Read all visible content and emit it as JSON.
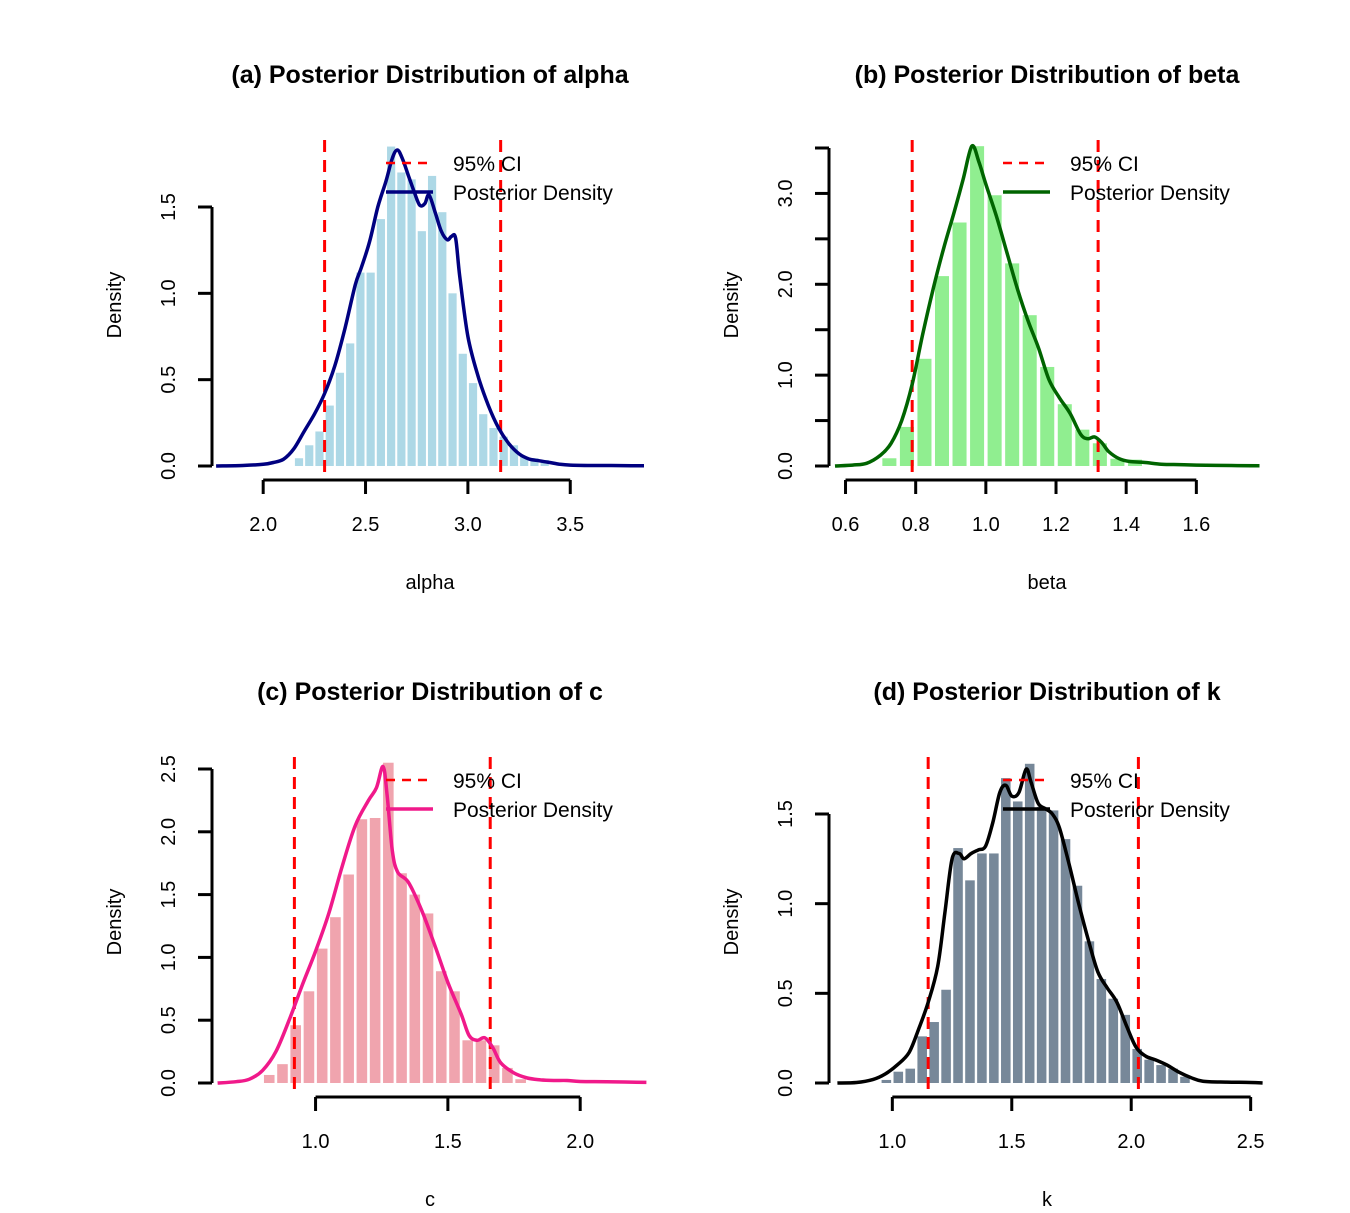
{
  "chart_data": [
    {
      "id": "alpha",
      "type": "bar",
      "title": "(a) Posterior Distribution of alpha",
      "xlabel": "alpha",
      "ylabel": "Density",
      "xlim": [
        1.75,
        3.87
      ],
      "ylim": [
        0,
        1.5
      ],
      "xticks": [
        2.0,
        2.5,
        3.0,
        3.5
      ],
      "xtick_labels": [
        "2.0",
        "2.5",
        "3.0",
        "3.5"
      ],
      "yticks": [
        0.0,
        0.5,
        1.0,
        1.5
      ],
      "ytick_labels": [
        "0.0",
        "0.5",
        "1.0",
        "1.5"
      ],
      "bin_width": 0.05,
      "bin_starts": [
        2.15,
        2.2,
        2.25,
        2.3,
        2.35,
        2.4,
        2.45,
        2.5,
        2.55,
        2.6,
        2.65,
        2.7,
        2.75,
        2.8,
        2.85,
        2.9,
        2.95,
        3.0,
        3.05,
        3.1,
        3.15,
        3.2,
        3.25,
        3.3,
        3.35
      ],
      "values": [
        0.045,
        0.12,
        0.2,
        0.35,
        0.54,
        0.71,
        1.12,
        1.12,
        1.43,
        1.85,
        1.7,
        1.66,
        1.36,
        1.68,
        1.47,
        1.0,
        0.65,
        0.48,
        0.3,
        0.22,
        0.17,
        0.12,
        0.054,
        0.045,
        0.035
      ],
      "density": {
        "x": [
          1.77,
          1.9,
          2.0,
          2.05,
          2.1,
          2.15,
          2.2,
          2.25,
          2.3,
          2.35,
          2.4,
          2.45,
          2.48,
          2.52,
          2.56,
          2.6,
          2.63,
          2.655,
          2.68,
          2.71,
          2.74,
          2.765,
          2.79,
          2.81,
          2.84,
          2.87,
          2.9,
          2.92,
          2.94,
          2.96,
          3.0,
          3.05,
          3.1,
          3.15,
          3.2,
          3.25,
          3.3,
          3.35,
          3.4,
          3.45,
          3.5,
          3.6,
          3.7,
          3.8,
          3.86
        ],
        "y": [
          0.0,
          0.003,
          0.01,
          0.02,
          0.04,
          0.1,
          0.2,
          0.3,
          0.42,
          0.58,
          0.8,
          1.05,
          1.15,
          1.3,
          1.5,
          1.65,
          1.78,
          1.83,
          1.78,
          1.68,
          1.58,
          1.51,
          1.52,
          1.57,
          1.47,
          1.36,
          1.31,
          1.33,
          1.32,
          1.1,
          0.75,
          0.52,
          0.35,
          0.22,
          0.13,
          0.07,
          0.04,
          0.03,
          0.02,
          0.01,
          0.005,
          0.003,
          0.003,
          0.002,
          0.002
        ]
      },
      "ci": [
        2.3,
        3.16
      ],
      "legend": [
        "95% CI",
        "Posterior Density"
      ],
      "legend_position": "top-right",
      "colors": {
        "bars": "#add8e6",
        "density": "#000080",
        "ci": "#ff0000"
      }
    },
    {
      "id": "beta",
      "type": "bar",
      "title": "(b) Posterior Distribution of beta",
      "xlabel": "beta",
      "ylabel": "Density",
      "xlim": [
        0.57,
        1.79
      ],
      "ylim": [
        0,
        3.5
      ],
      "xticks": [
        0.6,
        0.8,
        1.0,
        1.2,
        1.4,
        1.6
      ],
      "xtick_labels": [
        "0.6",
        "0.8",
        "1.0",
        "1.2",
        "1.4",
        "1.6"
      ],
      "yticks": [
        0.0,
        0.5,
        1.0,
        1.5,
        2.0,
        2.5,
        3.0,
        3.5
      ],
      "ytick_labels": [
        "0.0",
        "",
        "1.0",
        "",
        "2.0",
        "",
        "3.0",
        ""
      ],
      "bin_width": 0.05,
      "bin_starts": [
        0.7,
        0.75,
        0.8,
        0.85,
        0.9,
        0.95,
        1.0,
        1.05,
        1.1,
        1.15,
        1.2,
        1.25,
        1.3,
        1.35,
        1.4
      ],
      "values": [
        0.085,
        0.43,
        1.18,
        2.09,
        2.68,
        3.52,
        2.98,
        2.23,
        1.66,
        1.09,
        0.68,
        0.4,
        0.25,
        0.08,
        0.07
      ],
      "density": {
        "x": [
          0.57,
          0.62,
          0.66,
          0.7,
          0.73,
          0.76,
          0.79,
          0.82,
          0.85,
          0.88,
          0.91,
          0.935,
          0.96,
          0.98,
          1.0,
          1.03,
          1.06,
          1.09,
          1.12,
          1.15,
          1.18,
          1.21,
          1.24,
          1.27,
          1.29,
          1.31,
          1.33,
          1.35,
          1.38,
          1.41,
          1.45,
          1.5,
          1.55,
          1.6,
          1.7,
          1.78
        ],
        "y": [
          0.0,
          0.01,
          0.03,
          0.12,
          0.25,
          0.5,
          0.9,
          1.45,
          1.95,
          2.4,
          2.8,
          3.15,
          3.52,
          3.35,
          3.1,
          2.75,
          2.35,
          1.95,
          1.6,
          1.3,
          0.95,
          0.75,
          0.58,
          0.35,
          0.3,
          0.32,
          0.26,
          0.16,
          0.08,
          0.05,
          0.04,
          0.02,
          0.015,
          0.01,
          0.005,
          0.003
        ]
      },
      "ci": [
        0.79,
        1.32
      ],
      "legend": [
        "95% CI",
        "Posterior Density"
      ],
      "legend_position": "top-right",
      "colors": {
        "bars": "#90ee90",
        "density": "#006400",
        "ci": "#ff0000"
      }
    },
    {
      "id": "c",
      "type": "bar",
      "title": "(c) Posterior Distribution of c",
      "xlabel": "c",
      "ylabel": "Density",
      "xlim": [
        0.62,
        2.26
      ],
      "ylim": [
        0,
        2.5
      ],
      "xticks": [
        1.0,
        1.5,
        2.0
      ],
      "xtick_labels": [
        "1.0",
        "1.5",
        "2.0"
      ],
      "yticks": [
        0.0,
        0.5,
        1.0,
        1.5,
        2.0,
        2.5
      ],
      "ytick_labels": [
        "0.0",
        "0.5",
        "1.0",
        "1.5",
        "2.0",
        "2.5"
      ],
      "bin_width": 0.05,
      "bin_starts": [
        0.8,
        0.85,
        0.9,
        0.95,
        1.0,
        1.05,
        1.1,
        1.15,
        1.2,
        1.25,
        1.3,
        1.35,
        1.4,
        1.45,
        1.5,
        1.55,
        1.6,
        1.65,
        1.7,
        1.75
      ],
      "values": [
        0.064,
        0.15,
        0.46,
        0.73,
        1.07,
        1.32,
        1.66,
        2.1,
        2.11,
        2.55,
        1.67,
        1.5,
        1.35,
        0.89,
        0.73,
        0.34,
        0.34,
        0.3,
        0.12,
        0.03
      ],
      "density": {
        "x": [
          0.63,
          0.7,
          0.75,
          0.8,
          0.85,
          0.9,
          0.95,
          1.0,
          1.05,
          1.1,
          1.15,
          1.2,
          1.23,
          1.255,
          1.27,
          1.29,
          1.31,
          1.35,
          1.4,
          1.45,
          1.5,
          1.55,
          1.58,
          1.61,
          1.64,
          1.67,
          1.7,
          1.75,
          1.8,
          1.85,
          1.9,
          1.95,
          2.0,
          2.1,
          2.25
        ],
        "y": [
          0.0,
          0.01,
          0.03,
          0.1,
          0.25,
          0.5,
          0.78,
          1.05,
          1.35,
          1.72,
          2.05,
          2.25,
          2.35,
          2.52,
          2.3,
          1.85,
          1.68,
          1.6,
          1.38,
          1.1,
          0.8,
          0.55,
          0.38,
          0.34,
          0.36,
          0.28,
          0.16,
          0.08,
          0.04,
          0.025,
          0.02,
          0.02,
          0.012,
          0.01,
          0.005
        ]
      },
      "ci": [
        0.92,
        1.66
      ],
      "legend": [
        "95% CI",
        "Posterior Density"
      ],
      "legend_position": "top-right",
      "colors": {
        "bars": "#f0a4ae",
        "density": "#f0198a",
        "ci": "#ff0000"
      }
    },
    {
      "id": "k",
      "type": "bar",
      "title": "(d) Posterior Distribution of k",
      "xlabel": "k",
      "ylabel": "Density",
      "xlim": [
        0.76,
        2.56
      ],
      "ylim": [
        0,
        1.5
      ],
      "xticks": [
        1.0,
        1.5,
        2.0,
        2.5
      ],
      "xtick_labels": [
        "1.0",
        "1.5",
        "2.0",
        "2.5"
      ],
      "yticks": [
        0.0,
        0.5,
        1.0,
        1.5
      ],
      "ytick_labels": [
        "0.0",
        "0.5",
        "1.0",
        "1.5"
      ],
      "bin_width": 0.05,
      "bin_starts": [
        0.95,
        1.0,
        1.05,
        1.1,
        1.15,
        1.2,
        1.25,
        1.3,
        1.35,
        1.4,
        1.45,
        1.5,
        1.55,
        1.6,
        1.65,
        1.7,
        1.75,
        1.8,
        1.85,
        1.9,
        1.95,
        2.0,
        2.05,
        2.1,
        2.15,
        2.2
      ],
      "values": [
        0.017,
        0.063,
        0.08,
        0.26,
        0.34,
        0.52,
        1.31,
        1.13,
        1.28,
        1.28,
        1.7,
        1.57,
        1.78,
        1.54,
        1.52,
        1.36,
        1.1,
        0.79,
        0.58,
        0.47,
        0.38,
        0.19,
        0.13,
        0.1,
        0.08,
        0.035
      ],
      "density": {
        "x": [
          0.77,
          0.85,
          0.92,
          0.97,
          1.02,
          1.07,
          1.11,
          1.15,
          1.19,
          1.22,
          1.25,
          1.28,
          1.3,
          1.33,
          1.36,
          1.39,
          1.42,
          1.45,
          1.475,
          1.5,
          1.53,
          1.56,
          1.58,
          1.61,
          1.64,
          1.67,
          1.7,
          1.74,
          1.78,
          1.82,
          1.86,
          1.9,
          1.94,
          1.98,
          2.02,
          2.06,
          2.1,
          2.15,
          2.2,
          2.25,
          2.3,
          2.4,
          2.5,
          2.55
        ],
        "y": [
          0.0,
          0.003,
          0.02,
          0.05,
          0.1,
          0.17,
          0.3,
          0.45,
          0.65,
          0.95,
          1.25,
          1.28,
          1.25,
          1.28,
          1.3,
          1.32,
          1.45,
          1.62,
          1.66,
          1.6,
          1.62,
          1.75,
          1.68,
          1.56,
          1.53,
          1.5,
          1.42,
          1.22,
          1.0,
          0.8,
          0.62,
          0.53,
          0.45,
          0.32,
          0.2,
          0.15,
          0.13,
          0.1,
          0.06,
          0.03,
          0.01,
          0.005,
          0.003,
          0.0
        ]
      },
      "ci": [
        1.15,
        2.03
      ],
      "legend": [
        "95% CI",
        "Posterior Density"
      ],
      "legend_position": "top-right",
      "colors": {
        "bars": "#778899",
        "density": "#000000",
        "ci": "#ff0000"
      }
    }
  ]
}
